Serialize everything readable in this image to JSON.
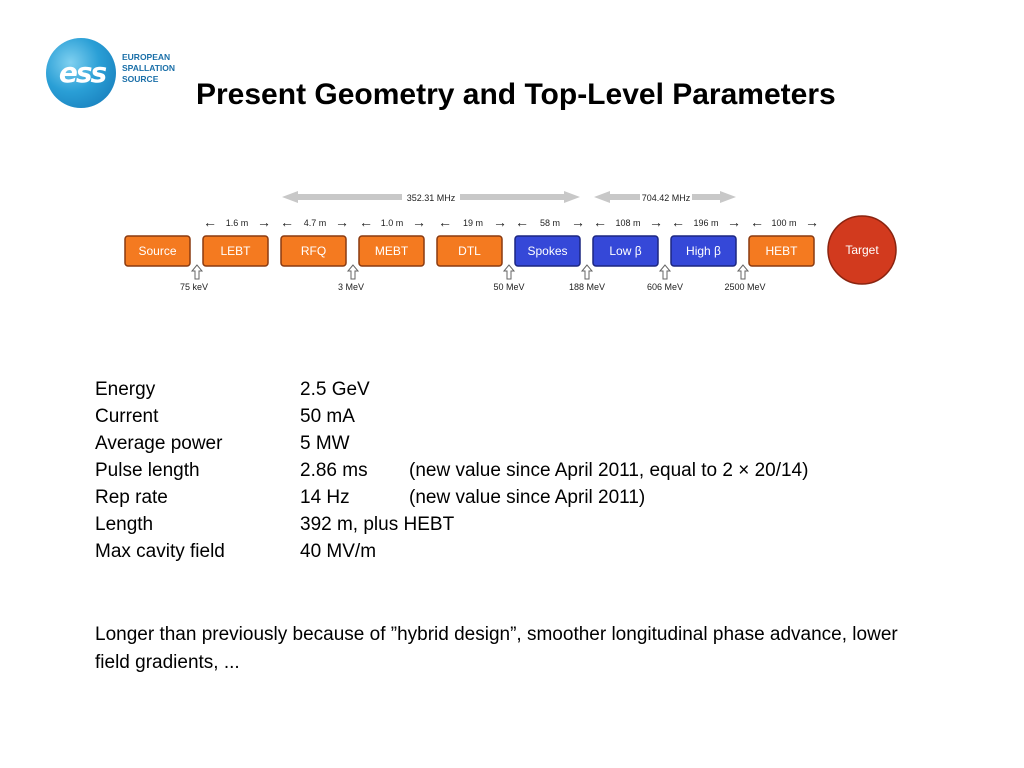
{
  "logo": {
    "lines": [
      "EUROPEAN",
      "SPALLATION",
      "SOURCE"
    ],
    "mark": "ess"
  },
  "title": "Present Geometry and Top-Level Parameters",
  "diagram": {
    "frequencies": [
      {
        "label": "352.31 MHz"
      },
      {
        "label": "704.42 MHz"
      }
    ],
    "lengths": [
      "1.6 m",
      "4.7 m",
      "1.0 m",
      "19 m",
      "58 m",
      "108 m",
      "196 m",
      "100 m"
    ],
    "sections": [
      {
        "label": "Source",
        "kind": "normal"
      },
      {
        "label": "LEBT",
        "kind": "normal"
      },
      {
        "label": "RFQ",
        "kind": "normal"
      },
      {
        "label": "MEBT",
        "kind": "normal"
      },
      {
        "label": "DTL",
        "kind": "normal"
      },
      {
        "label": "Spokes",
        "kind": "superconducting"
      },
      {
        "label": "Low β",
        "kind": "superconducting"
      },
      {
        "label": "High β",
        "kind": "superconducting"
      },
      {
        "label": "HEBT",
        "kind": "normal"
      },
      {
        "label": "Target",
        "kind": "target"
      }
    ],
    "energies": [
      "75 keV",
      "3 MeV",
      "50 MeV",
      "188 MeV",
      "606 MeV",
      "2500 MeV"
    ],
    "colors": {
      "normal": "#f47a20",
      "superconducting": "#3548d8",
      "target": "#d23a1e",
      "border": "#8a3a10",
      "arrow": "#c8c8c8"
    }
  },
  "params": [
    {
      "name": "Energy",
      "value": "2.5 GeV",
      "note": ""
    },
    {
      "name": "Current",
      "value": "50 mA",
      "note": ""
    },
    {
      "name": "Average power",
      "value": "5 MW",
      "note": ""
    },
    {
      "name": "Pulse length",
      "value": "2.86 ms",
      "note": "(new value since April 2011, equal to 2 × 20/14)"
    },
    {
      "name": "Rep rate",
      "value": "14 Hz",
      "note": "(new value since April 2011)"
    },
    {
      "name": "Length",
      "value": "392 m, plus HEBT",
      "note": ""
    },
    {
      "name": "Max cavity field",
      "value": "40 MV/m",
      "note": ""
    }
  ],
  "note": "Longer than previously because of ”hybrid design”, smoother longitudinal phase advance, lower field gradients, ..."
}
